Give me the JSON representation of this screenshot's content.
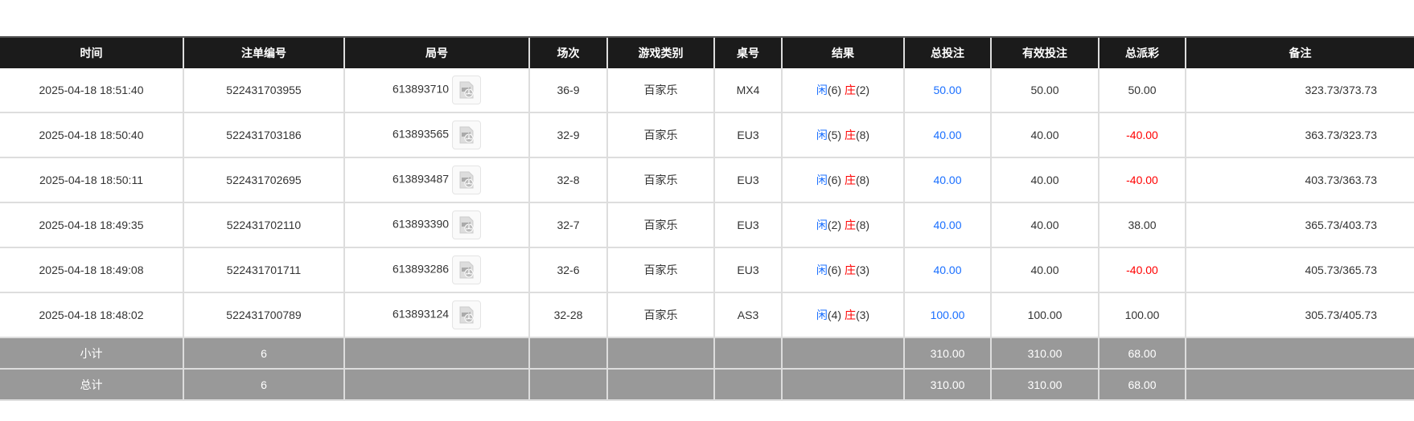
{
  "headers": [
    "时间",
    "注单编号",
    "局号",
    "场次",
    "游戏类别",
    "桌号",
    "结果",
    "总投注",
    "有效投注",
    "总派彩",
    "备注"
  ],
  "icons": {
    "replay": "video-replay-icon"
  },
  "colors": {
    "player": "#1a6fff",
    "banker": "#ff0000",
    "header_bg": "#1b1b1b",
    "summary_bg": "#999999"
  },
  "rows": [
    {
      "time": "2025-04-18 18:51:40",
      "bet_id": "522431703955",
      "round": "613893710",
      "shoe": "36-9",
      "game": "百家乐",
      "table": "MX4",
      "player": "闲",
      "player_pts": "(6)",
      "banker": "庄",
      "banker_pts": "(2)",
      "bet": "50.00",
      "valid": "50.00",
      "payout": "50.00",
      "payout_neg": false,
      "remark": "323.73/373.73"
    },
    {
      "time": "2025-04-18 18:50:40",
      "bet_id": "522431703186",
      "round": "613893565",
      "shoe": "32-9",
      "game": "百家乐",
      "table": "EU3",
      "player": "闲",
      "player_pts": "(5)",
      "banker": "庄",
      "banker_pts": "(8)",
      "bet": "40.00",
      "valid": "40.00",
      "payout": "-40.00",
      "payout_neg": true,
      "remark": "363.73/323.73"
    },
    {
      "time": "2025-04-18 18:50:11",
      "bet_id": "522431702695",
      "round": "613893487",
      "shoe": "32-8",
      "game": "百家乐",
      "table": "EU3",
      "player": "闲",
      "player_pts": "(6)",
      "banker": "庄",
      "banker_pts": "(8)",
      "bet": "40.00",
      "valid": "40.00",
      "payout": "-40.00",
      "payout_neg": true,
      "remark": "403.73/363.73"
    },
    {
      "time": "2025-04-18 18:49:35",
      "bet_id": "522431702110",
      "round": "613893390",
      "shoe": "32-7",
      "game": "百家乐",
      "table": "EU3",
      "player": "闲",
      "player_pts": "(2)",
      "banker": "庄",
      "banker_pts": "(8)",
      "bet": "40.00",
      "valid": "40.00",
      "payout": "38.00",
      "payout_neg": false,
      "remark": "365.73/403.73"
    },
    {
      "time": "2025-04-18 18:49:08",
      "bet_id": "522431701711",
      "round": "613893286",
      "shoe": "32-6",
      "game": "百家乐",
      "table": "EU3",
      "player": "闲",
      "player_pts": "(6)",
      "banker": "庄",
      "banker_pts": "(3)",
      "bet": "40.00",
      "valid": "40.00",
      "payout": "-40.00",
      "payout_neg": true,
      "remark": "405.73/365.73"
    },
    {
      "time": "2025-04-18 18:48:02",
      "bet_id": "522431700789",
      "round": "613893124",
      "shoe": "32-28",
      "game": "百家乐",
      "table": "AS3",
      "player": "闲",
      "player_pts": "(4)",
      "banker": "庄",
      "banker_pts": "(3)",
      "bet": "100.00",
      "valid": "100.00",
      "payout": "100.00",
      "payout_neg": false,
      "remark": "305.73/405.73"
    }
  ],
  "summary": [
    {
      "label": "小计",
      "count": "6",
      "bet": "310.00",
      "valid": "310.00",
      "payout": "68.00"
    },
    {
      "label": "总计",
      "count": "6",
      "bet": "310.00",
      "valid": "310.00",
      "payout": "68.00"
    }
  ]
}
